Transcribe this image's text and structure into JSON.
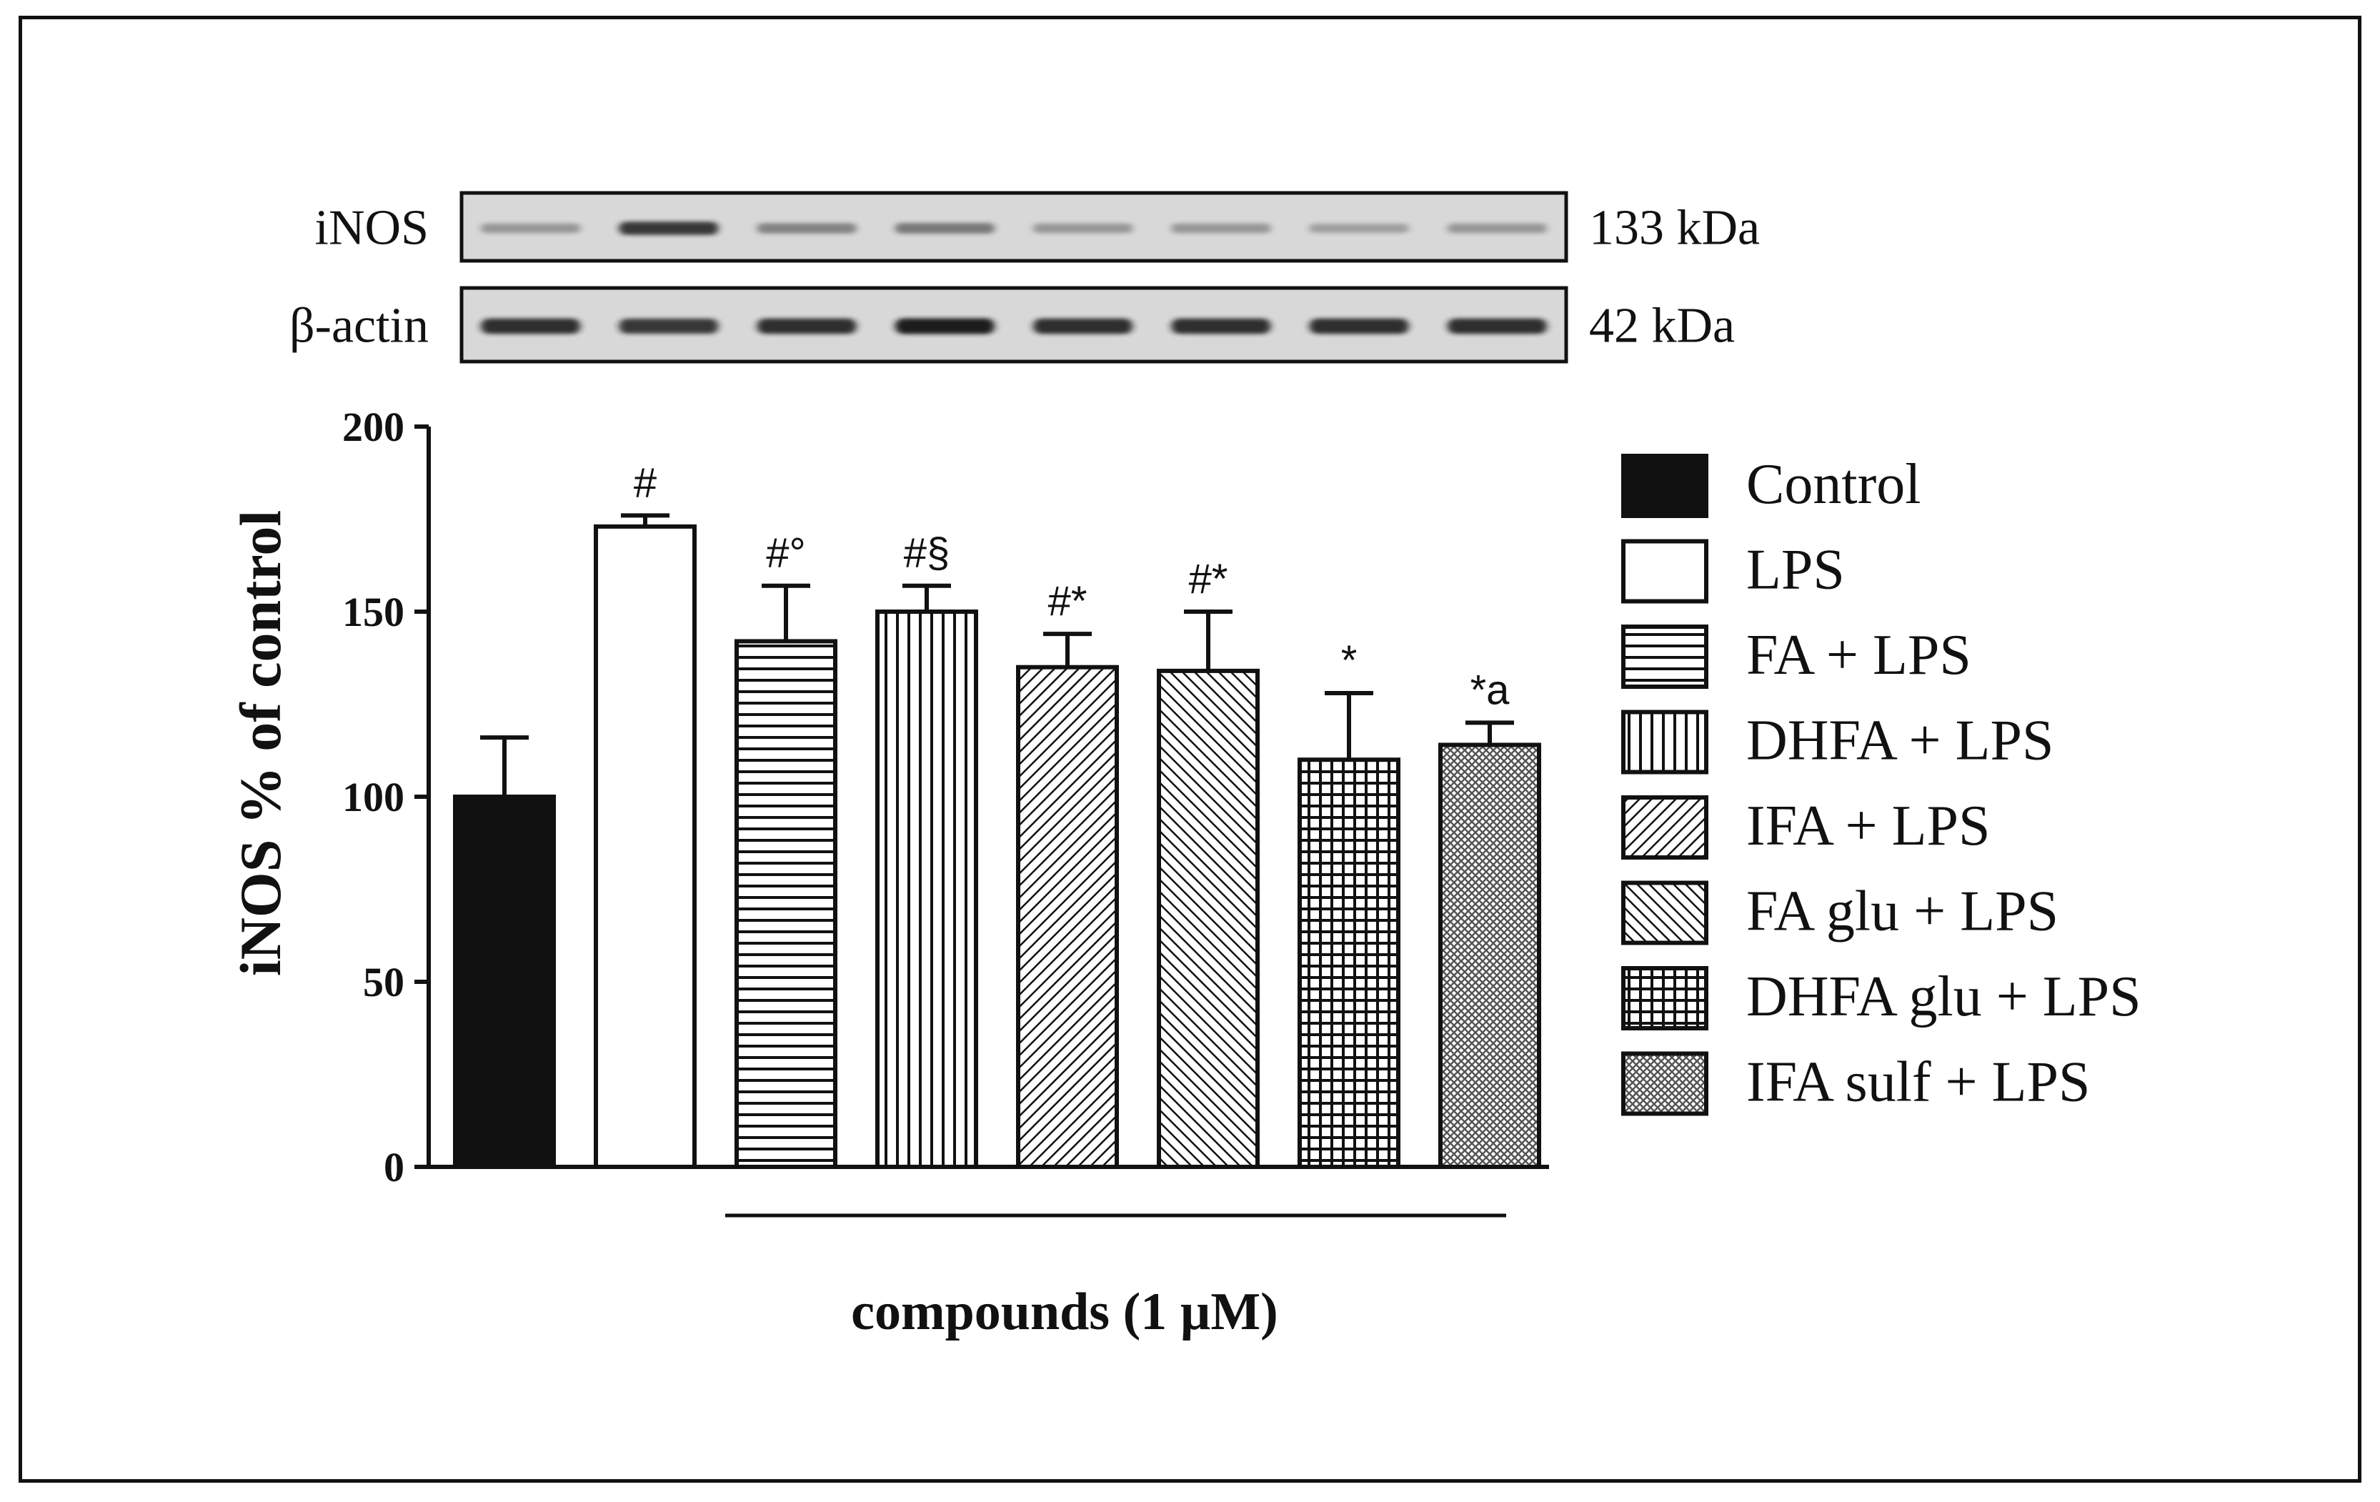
{
  "chart_data": {
    "type": "bar",
    "ylabel": "iNOS % of control",
    "xlabel": "compounds (1 µM)",
    "ylim": [
      0,
      200
    ],
    "yticks": [
      "0",
      "50",
      "100",
      "150",
      "200"
    ],
    "categories": [
      "Control",
      "LPS",
      "FA + LPS",
      "DHFA + LPS",
      "IFA + LPS",
      "FA glu + LPS",
      "DHFA glu + LPS",
      "IFA sulf + LPS"
    ],
    "values": [
      100,
      173,
      142,
      150,
      135,
      134,
      110,
      114
    ],
    "errors": [
      16,
      3,
      15,
      7,
      9,
      16,
      18,
      6
    ],
    "annotations": [
      "",
      "#",
      "#°",
      "#§",
      "#*",
      "#*",
      "*",
      "*a"
    ],
    "patterns": [
      "solid-black",
      "white",
      "horizontal-lines",
      "vertical-lines",
      "diagonal-fine",
      "diagonal-back",
      "grid",
      "crosshatch-dense"
    ],
    "legend_position": "right"
  },
  "blot": {
    "rows": [
      {
        "label": "iNOS",
        "size": "133 kDa",
        "intensities": [
          0.35,
          0.85,
          0.45,
          0.5,
          0.35,
          0.35,
          0.3,
          0.35
        ]
      },
      {
        "label": "β-actin",
        "size": "42 kDa",
        "intensities": [
          0.9,
          0.85,
          0.9,
          1.0,
          0.9,
          0.9,
          0.9,
          0.9
        ]
      }
    ]
  },
  "colors": {
    "ink": "#111111",
    "blot_bg": "#d8d8d8",
    "band": "#1a1a1a"
  }
}
